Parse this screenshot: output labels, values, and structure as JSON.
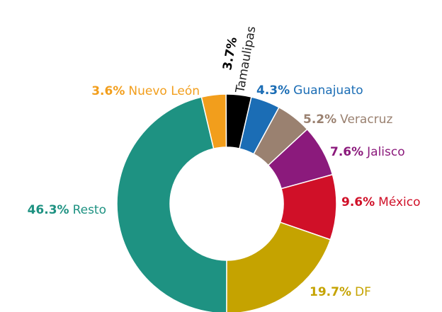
{
  "chart_data": {
    "type": "pie",
    "categories": [
      "Guanajuato",
      "Veracruz",
      "Jalisco",
      "México",
      "DF",
      "Resto",
      "Nuevo León",
      "Tamaulipas"
    ],
    "values": [
      4.3,
      5.2,
      7.6,
      9.6,
      19.7,
      46.3,
      3.6,
      3.7
    ],
    "value_labels": [
      "4.3%",
      "5.2%",
      "7.6%",
      "9.6%",
      "19.7%",
      "46.3%",
      "3.6%",
      "3.7%"
    ],
    "colors": [
      "#1b6db5",
      "#9a8170",
      "#8b1a7c",
      "#d01028",
      "#c5a300",
      "#1e9282",
      "#f29e1c",
      "#000000"
    ]
  }
}
